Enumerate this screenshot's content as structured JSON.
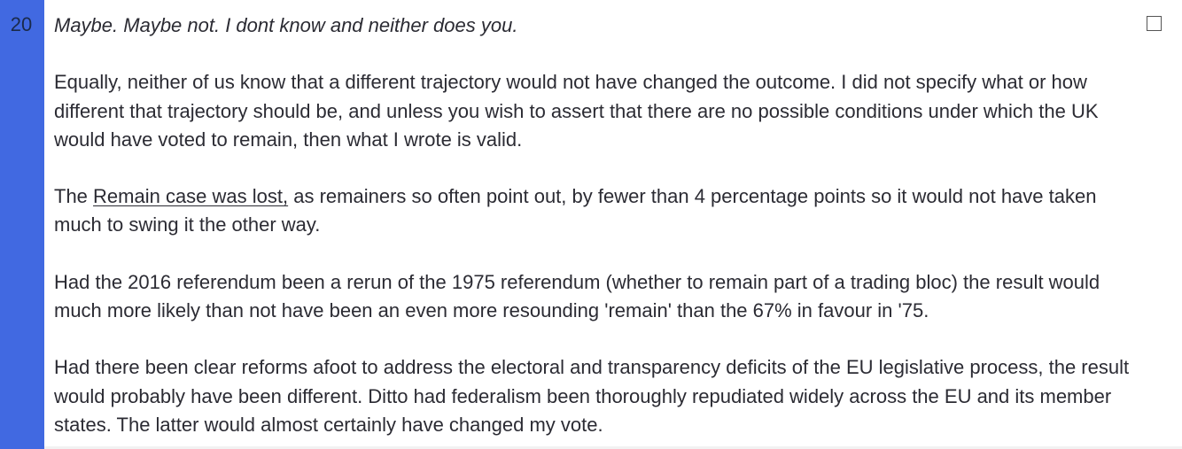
{
  "comment": {
    "line_number": "20",
    "quote": "Maybe. Maybe not. I dont know and neither does you.",
    "paragraph_1": "Equally, neither of us know that a different trajectory would not have changed the outcome. I did not specify what or how different that trajectory should be, and unless you wish to assert that there are no possible conditions under which the UK would have voted to remain, then what I wrote is valid.",
    "paragraph_2": {
      "before": "The ",
      "link": "Remain case was lost,",
      "after": " as remainers so often point out, by fewer than 4 percentage points so it would not have taken much to swing it the other way."
    },
    "paragraph_3": "Had the 2016 referendum been a rerun of the 1975 referendum (whether to remain part of a trading bloc) the result would much more likely than not have been an even more resounding 'remain' than the 67% in favour in '75.",
    "paragraph_4": "Had there been clear reforms afoot to address the electoral and transparency deficits of the EU legislative process, the result would probably have been different. Ditto had federalism been thoroughly repudiated widely across the EU and its member states. The latter would almost certainly have changed my vote."
  },
  "checkbox": {
    "checked": false
  },
  "colors": {
    "gutter": "#4169e1",
    "text": "#2b2b33",
    "line_number": "#1a2a4a"
  }
}
